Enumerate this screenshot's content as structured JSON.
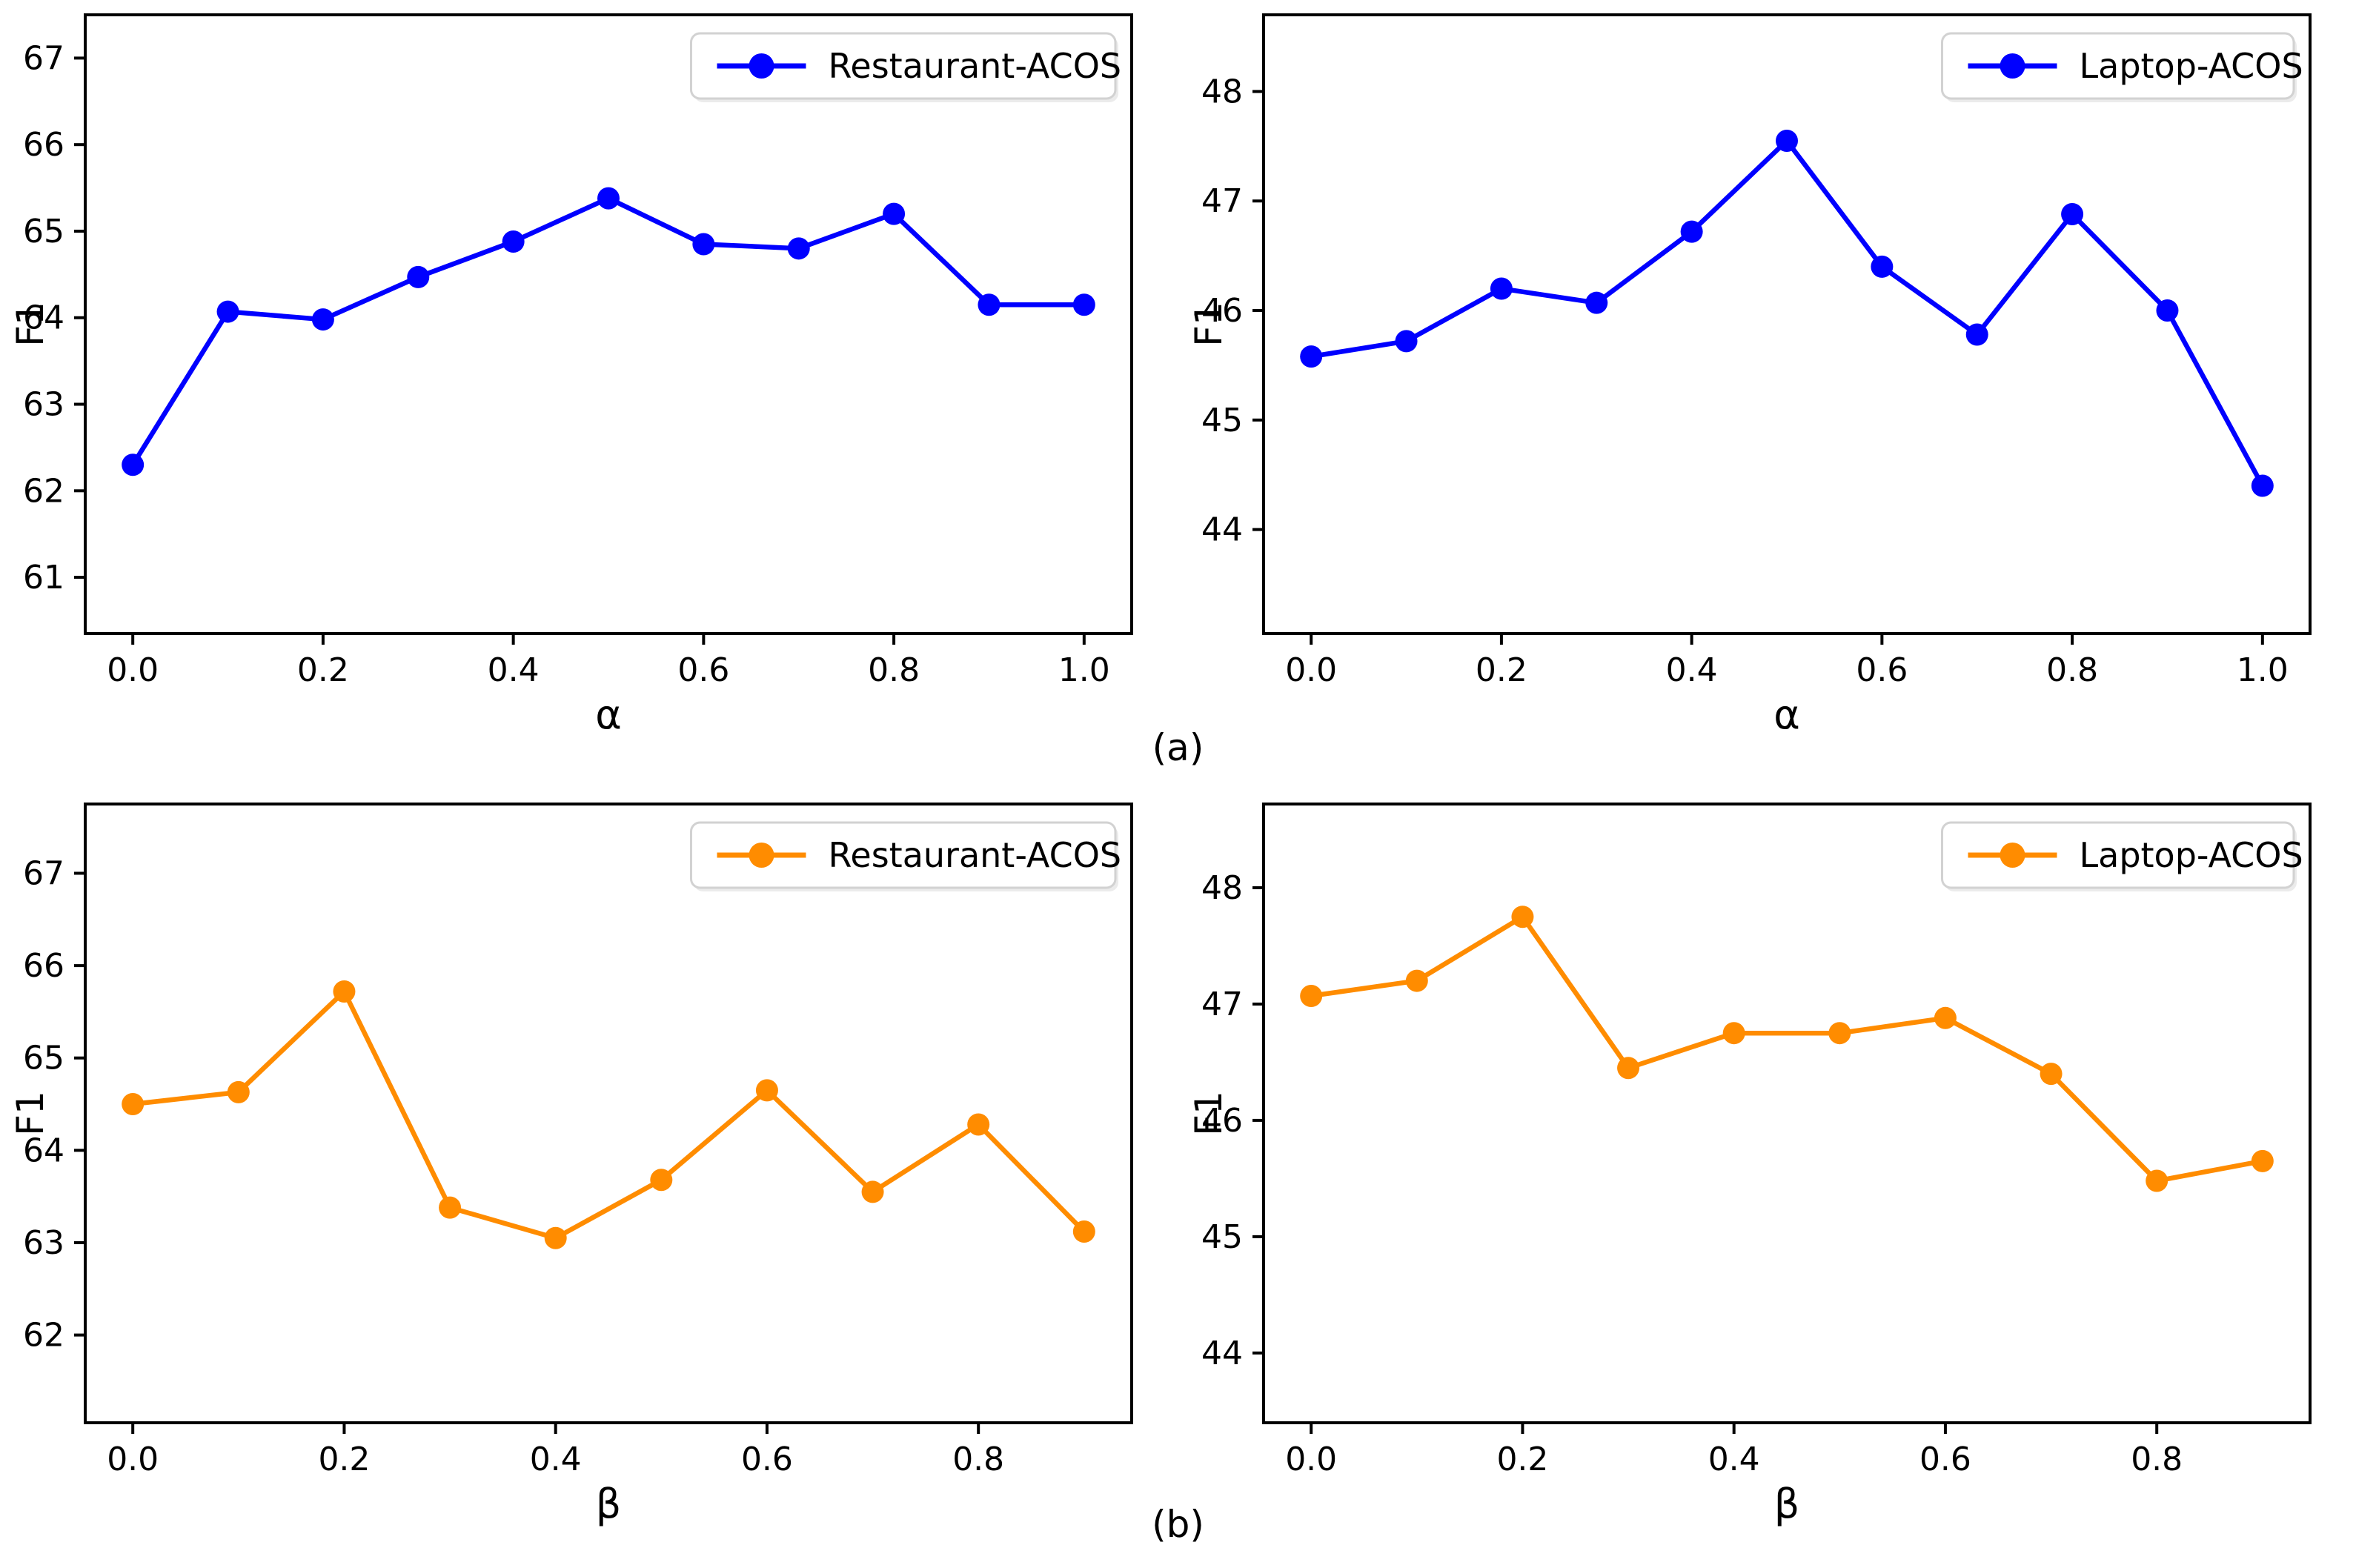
{
  "figure": {
    "captions": {
      "a": "(a)",
      "b": "(b)"
    },
    "background": "#ffffff",
    "spine_color": "#000000",
    "text_color": "#000000"
  },
  "chart_data": [
    {
      "type": "line",
      "title": "",
      "xlabel": "α",
      "ylabel": "F1",
      "legend": {
        "label": "Restaurant-ACOS",
        "loc": "upper right"
      },
      "color": "#0000FF",
      "x": [
        0.0,
        0.1,
        0.2,
        0.3,
        0.4,
        0.5,
        0.6,
        0.7,
        0.8,
        0.9,
        1.0
      ],
      "y": [
        62.3,
        64.07,
        63.98,
        64.47,
        64.88,
        65.38,
        64.85,
        64.8,
        65.2,
        64.15,
        64.15
      ],
      "xlim": [
        -0.05,
        1.05
      ],
      "ylim": [
        60.35,
        67.5
      ],
      "xticks": [
        0.0,
        0.2,
        0.4,
        0.6,
        0.8,
        1.0
      ],
      "yticks": [
        61,
        62,
        63,
        64,
        65,
        66,
        67
      ],
      "grid": false
    },
    {
      "type": "line",
      "title": "",
      "xlabel": "α",
      "ylabel": "F1",
      "legend": {
        "label": "Laptop-ACOS",
        "loc": "upper right"
      },
      "color": "#0000FF",
      "x": [
        0.0,
        0.1,
        0.2,
        0.3,
        0.4,
        0.5,
        0.6,
        0.7,
        0.8,
        0.9,
        1.0
      ],
      "y": [
        45.58,
        45.72,
        46.2,
        46.07,
        46.72,
        47.55,
        46.4,
        45.78,
        46.88,
        46.0,
        44.4
      ],
      "xlim": [
        -0.05,
        1.05
      ],
      "ylim": [
        43.05,
        48.7
      ],
      "xticks": [
        0.0,
        0.2,
        0.4,
        0.6,
        0.8,
        1.0
      ],
      "yticks": [
        44,
        45,
        46,
        47,
        48
      ],
      "grid": false
    },
    {
      "type": "line",
      "title": "",
      "xlabel": "β",
      "ylabel": "F1",
      "legend": {
        "label": "Restaurant-ACOS",
        "loc": "upper right"
      },
      "color": "#FF8C00",
      "x": [
        0.0,
        0.1,
        0.2,
        0.3,
        0.4,
        0.5,
        0.6,
        0.7,
        0.8,
        0.9
      ],
      "y": [
        64.5,
        64.63,
        65.72,
        63.38,
        63.05,
        63.68,
        64.65,
        63.55,
        64.28,
        63.12
      ],
      "xlim": [
        -0.045,
        0.945
      ],
      "ylim": [
        61.05,
        67.75
      ],
      "xticks": [
        0.0,
        0.2,
        0.4,
        0.6,
        0.8
      ],
      "yticks": [
        62,
        63,
        64,
        65,
        66,
        67
      ],
      "grid": false
    },
    {
      "type": "line",
      "title": "",
      "xlabel": "β",
      "ylabel": "F1",
      "legend": {
        "label": "Laptop-ACOS",
        "loc": "upper right"
      },
      "color": "#FF8C00",
      "x": [
        0.0,
        0.1,
        0.2,
        0.3,
        0.4,
        0.5,
        0.6,
        0.7,
        0.8,
        0.9
      ],
      "y": [
        47.07,
        47.2,
        47.75,
        46.45,
        46.75,
        46.75,
        46.88,
        46.4,
        45.48,
        45.65
      ],
      "xlim": [
        -0.045,
        0.945
      ],
      "ylim": [
        43.4,
        48.72
      ],
      "xticks": [
        0.0,
        0.2,
        0.4,
        0.6,
        0.8
      ],
      "yticks": [
        44,
        45,
        46,
        47,
        48
      ],
      "grid": false
    }
  ]
}
